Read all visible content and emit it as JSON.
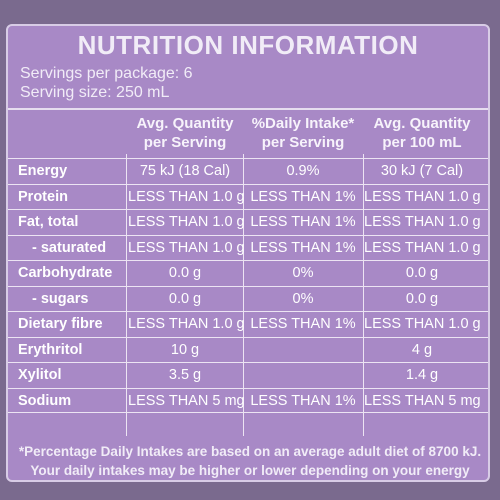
{
  "title": "NUTRITION INFORMATION",
  "servings_per_package": "Servings per package: 6",
  "serving_size": "Serving size: 250 mL",
  "headers": {
    "col1": [
      "Avg. Quantity",
      "per Serving"
    ],
    "col2": [
      "%Daily Intake*",
      "per Serving"
    ],
    "col3": [
      "Avg. Quantity",
      "per 100 mL"
    ]
  },
  "rows": [
    {
      "name": "Energy",
      "indent": false,
      "per_serving": "75 kJ (18 Cal)",
      "daily_intake": "0.9%",
      "per_100ml": "30 kJ (7 Cal)"
    },
    {
      "name": "Protein",
      "indent": false,
      "per_serving": "LESS THAN 1.0 g",
      "daily_intake": "LESS THAN 1%",
      "per_100ml": "LESS THAN 1.0 g"
    },
    {
      "name": "Fat, total",
      "indent": false,
      "per_serving": "LESS THAN 1.0 g",
      "daily_intake": "LESS THAN 1%",
      "per_100ml": "LESS THAN 1.0 g"
    },
    {
      "name": "- saturated",
      "indent": true,
      "per_serving": "LESS THAN 1.0 g",
      "daily_intake": "LESS THAN 1%",
      "per_100ml": "LESS THAN 1.0 g"
    },
    {
      "name": "Carbohydrate",
      "indent": false,
      "per_serving": "0.0 g",
      "daily_intake": "0%",
      "per_100ml": "0.0 g"
    },
    {
      "name": "- sugars",
      "indent": true,
      "per_serving": "0.0 g",
      "daily_intake": "0%",
      "per_100ml": "0.0 g"
    },
    {
      "name": "Dietary fibre",
      "indent": false,
      "per_serving": "LESS THAN 1.0 g",
      "daily_intake": "LESS THAN 1%",
      "per_100ml": "LESS THAN 1.0 g"
    },
    {
      "name": "Erythritol",
      "indent": false,
      "per_serving": "10 g",
      "daily_intake": "",
      "per_100ml": "4 g"
    },
    {
      "name": "Xylitol",
      "indent": false,
      "per_serving": "3.5 g",
      "daily_intake": "",
      "per_100ml": "1.4 g"
    },
    {
      "name": "Sodium",
      "indent": false,
      "per_serving": "LESS THAN 5 mg",
      "daily_intake": "LESS THAN 1%",
      "per_100ml": "LESS THAN 5 mg"
    }
  ],
  "footnote": [
    "*Percentage Daily Intakes are based on an average adult diet of 8700 kJ.",
    "Your daily intakes may be higher or lower depending on your energy needs."
  ],
  "colors": {
    "panel": "#a889c6",
    "background": "#7a6a8e",
    "text": "#ffffff"
  }
}
